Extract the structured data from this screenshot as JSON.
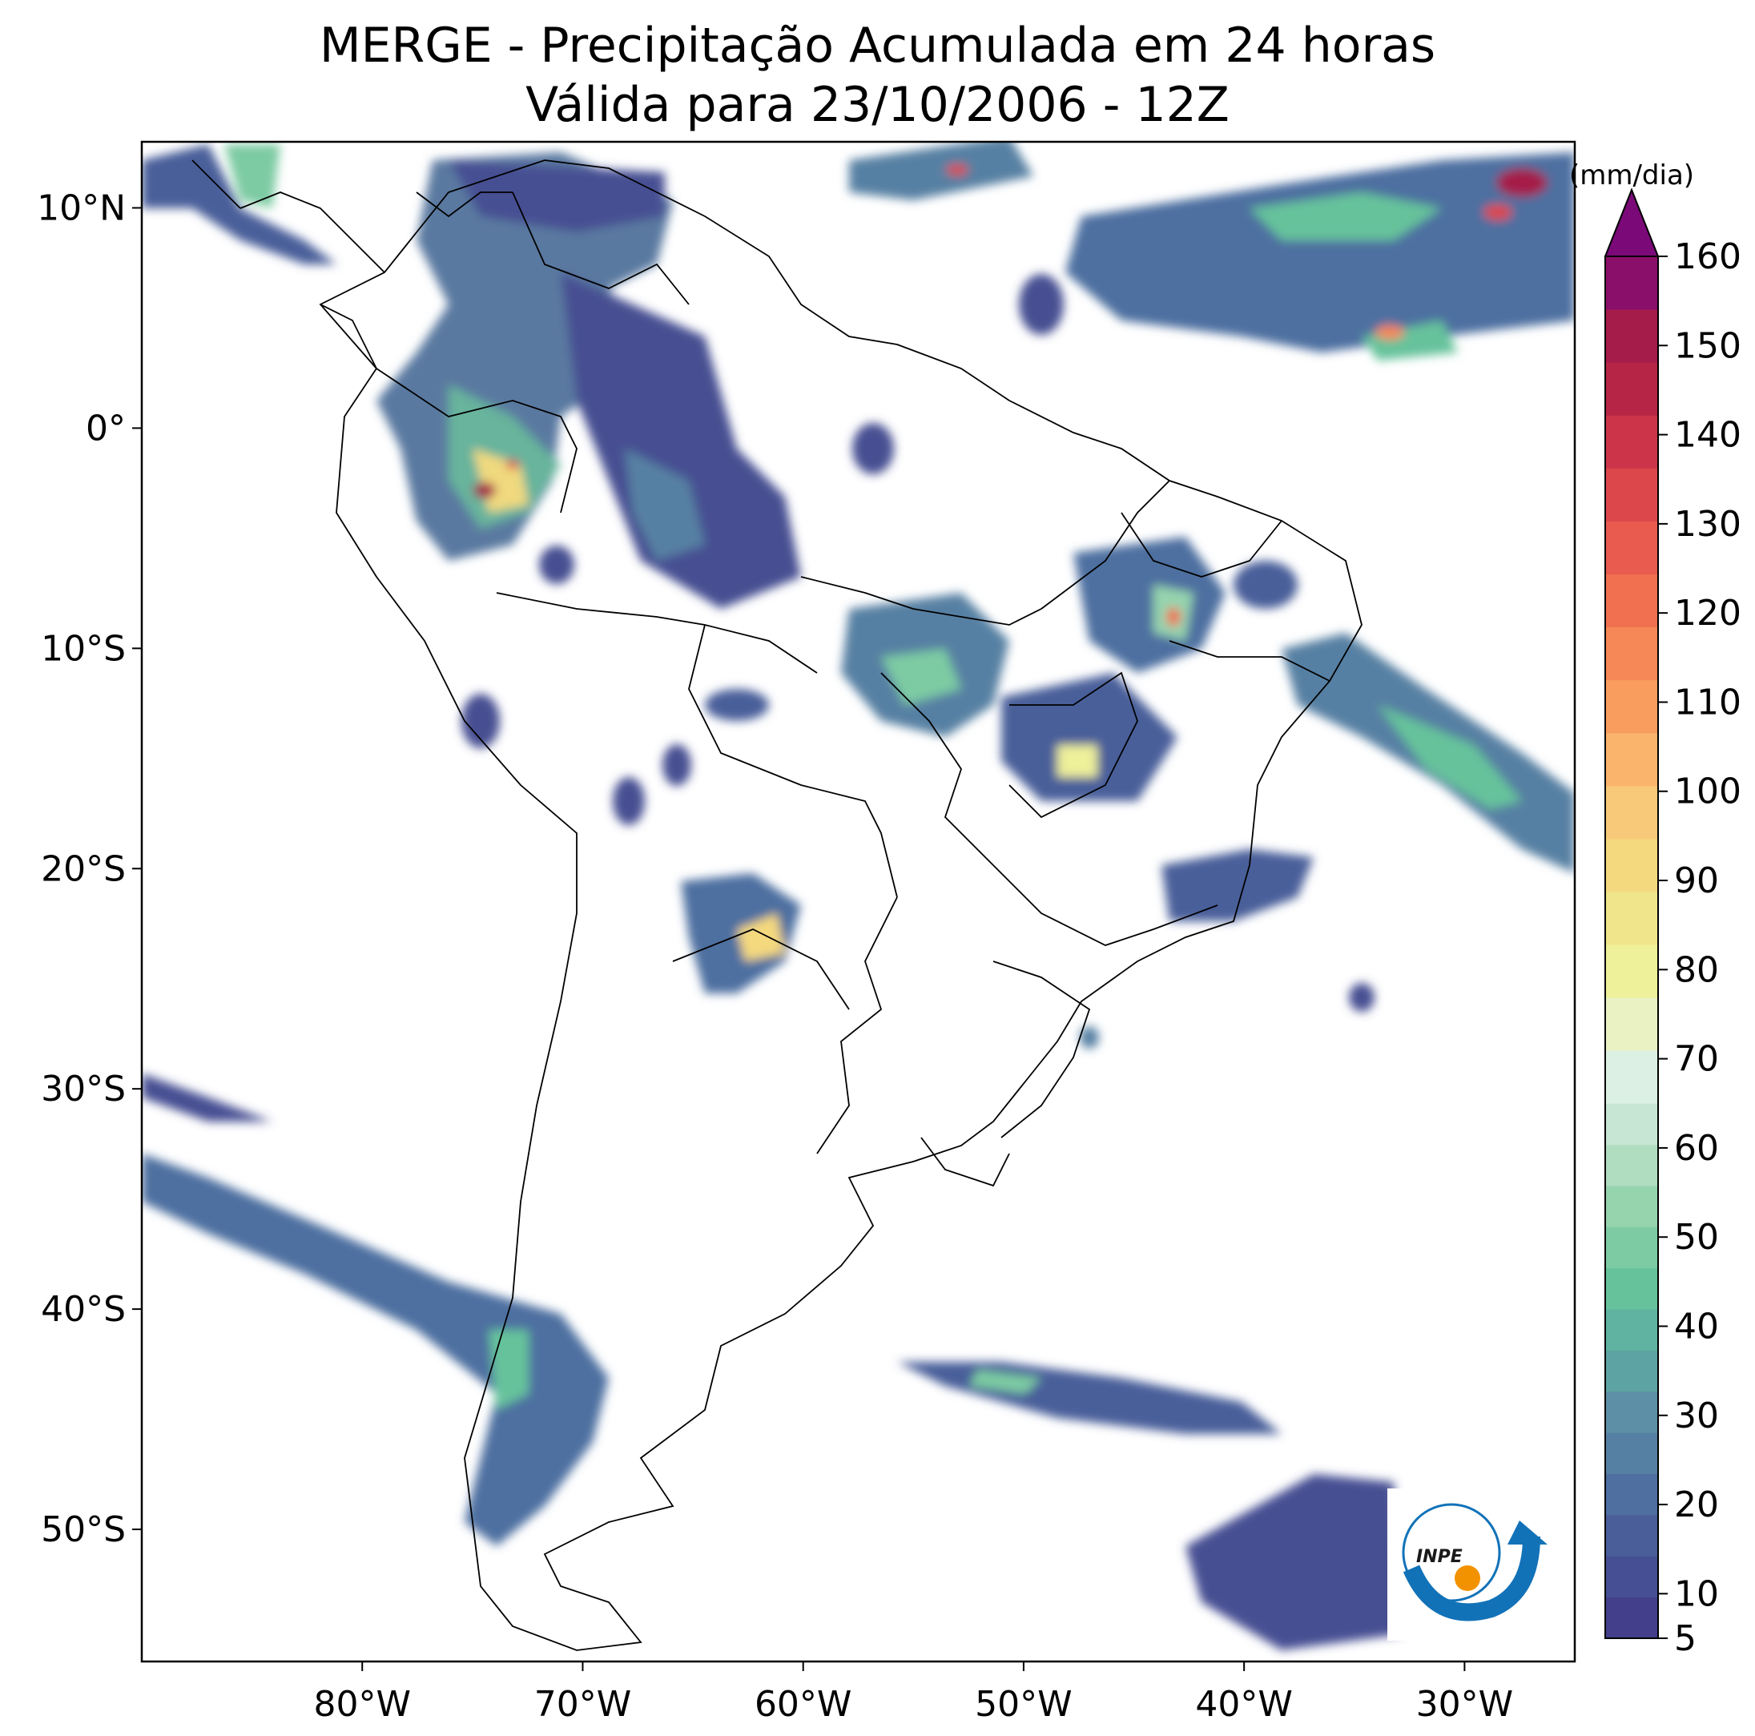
{
  "title": {
    "line1": "MERGE - Precipitação Acumulada em 24 horas",
    "line2": "Válida para 23/10/2006 - 12Z"
  },
  "axes": {
    "lat_labels": [
      "10°N",
      "0°",
      "10°S",
      "20°S",
      "30°S",
      "40°S",
      "50°S"
    ],
    "lat_values": [
      10,
      0,
      -10,
      -20,
      -30,
      -40,
      -50
    ],
    "lon_labels": [
      "80°W",
      "70°W",
      "60°W",
      "50°W",
      "40°W",
      "30°W"
    ],
    "lon_values": [
      -80,
      -70,
      -60,
      -50,
      -40,
      -30
    ],
    "lon_range": [
      -90,
      -25
    ],
    "lat_range": [
      -56,
      13
    ]
  },
  "colorbar": {
    "unit": "(mm/dia)",
    "tick_labels": [
      "5",
      "10",
      "20",
      "30",
      "40",
      "50",
      "60",
      "70",
      "80",
      "90",
      "100",
      "110",
      "120",
      "130",
      "140",
      "150",
      "160"
    ],
    "tick_values": [
      5,
      10,
      20,
      30,
      40,
      50,
      60,
      70,
      80,
      90,
      100,
      110,
      120,
      130,
      140,
      150,
      160
    ],
    "colors": [
      "#433f8a",
      "#464f93",
      "#4a5e9a",
      "#4e6fa0",
      "#5680a3",
      "#5d90a6",
      "#5ea3a3",
      "#5fb3a0",
      "#66c29b",
      "#7dcba3",
      "#96d4ae",
      "#b0ddc0",
      "#c8e6d4",
      "#dcf0e4",
      "#eaf2c4",
      "#eef09a",
      "#f0e58b",
      "#f5d97e",
      "#f8c978",
      "#fab46c",
      "#f99d5f",
      "#f68756",
      "#f07050",
      "#e85b4e",
      "#dc474b",
      "#cc3549",
      "#b72546",
      "#a51b4a",
      "#8a0f6a"
    ],
    "extend_color": "#7b0a78"
  },
  "logo": {
    "text": "INPE",
    "colors": {
      "blue": "#1272b8",
      "orange": "#f39200"
    }
  }
}
